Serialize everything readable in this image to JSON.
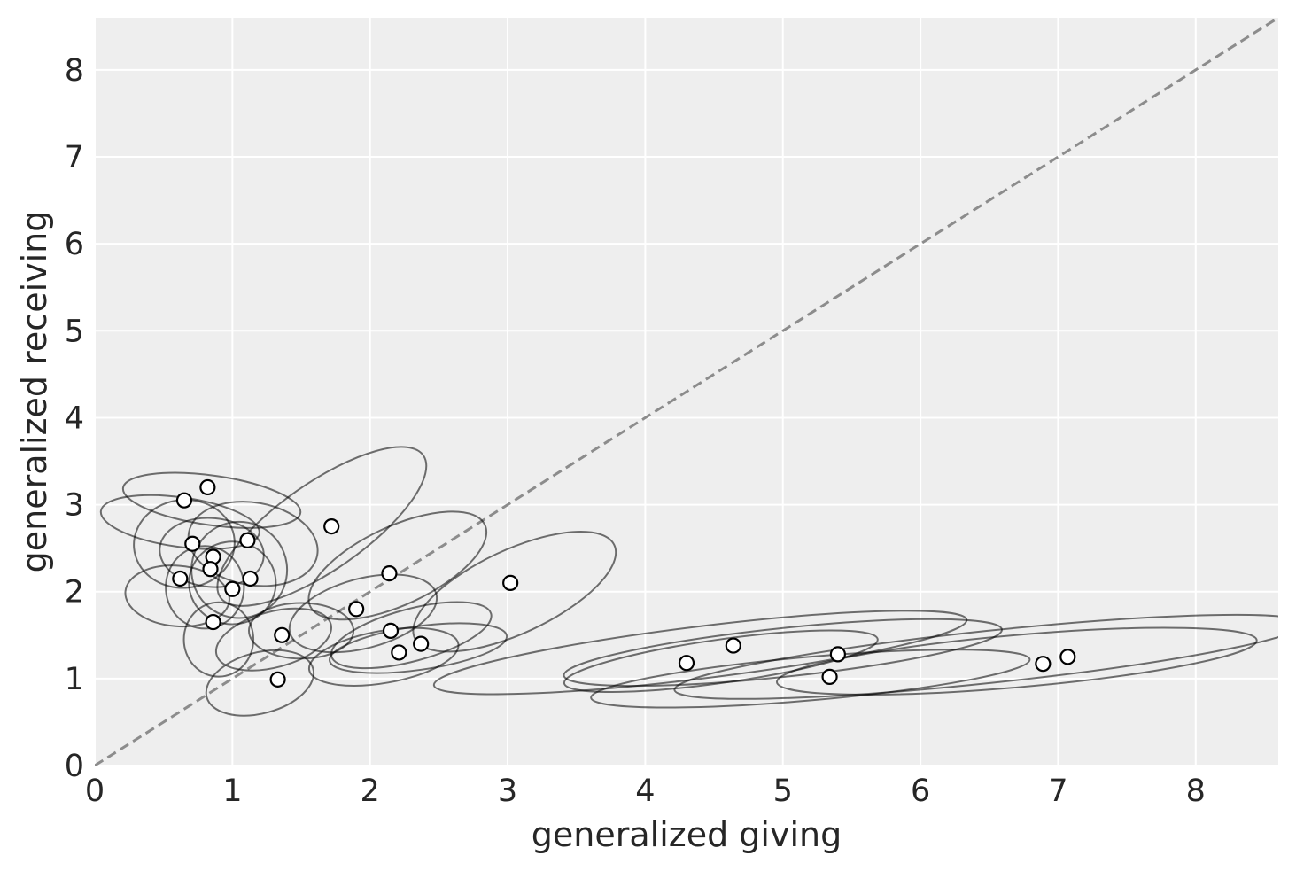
{
  "chart_data": {
    "type": "scatter",
    "title": "",
    "xlabel": "generalized giving",
    "ylabel": "generalized receiving",
    "xlim": [
      0,
      8.6
    ],
    "ylim": [
      0,
      8.6
    ],
    "xticks": [
      "0",
      "1",
      "2",
      "3",
      "4",
      "5",
      "6",
      "7",
      "8"
    ],
    "yticks": [
      "0",
      "1",
      "2",
      "3",
      "4",
      "5",
      "6",
      "7",
      "8"
    ],
    "grid": true,
    "reference_line": {
      "style": "dashed",
      "from": [
        0,
        0
      ],
      "to": [
        8.6,
        8.6
      ],
      "color": "#8c8c8c"
    },
    "points": [
      {
        "x": 0.65,
        "y": 3.05
      },
      {
        "x": 0.82,
        "y": 3.2
      },
      {
        "x": 0.71,
        "y": 2.55
      },
      {
        "x": 0.86,
        "y": 2.4
      },
      {
        "x": 0.84,
        "y": 2.26
      },
      {
        "x": 0.62,
        "y": 2.15
      },
      {
        "x": 1.11,
        "y": 2.59
      },
      {
        "x": 1.13,
        "y": 2.15
      },
      {
        "x": 1.0,
        "y": 2.03
      },
      {
        "x": 0.86,
        "y": 1.65
      },
      {
        "x": 1.36,
        "y": 1.5
      },
      {
        "x": 1.33,
        "y": 0.99
      },
      {
        "x": 1.72,
        "y": 2.75
      },
      {
        "x": 1.9,
        "y": 1.8
      },
      {
        "x": 2.14,
        "y": 2.21
      },
      {
        "x": 2.15,
        "y": 1.55
      },
      {
        "x": 2.21,
        "y": 1.3
      },
      {
        "x": 2.37,
        "y": 1.4
      },
      {
        "x": 3.02,
        "y": 2.1
      },
      {
        "x": 4.3,
        "y": 1.18
      },
      {
        "x": 4.64,
        "y": 1.38
      },
      {
        "x": 5.34,
        "y": 1.02
      },
      {
        "x": 5.4,
        "y": 1.28
      },
      {
        "x": 6.89,
        "y": 1.17
      },
      {
        "x": 7.07,
        "y": 1.25
      }
    ],
    "ellipses": [
      {
        "cx": 0.62,
        "cy": 2.8,
        "rx": 0.18,
        "ry": 0.92,
        "angle": 82
      },
      {
        "cx": 0.85,
        "cy": 3.05,
        "rx": 0.18,
        "ry": 1.03,
        "angle": 82
      },
      {
        "cx": 0.65,
        "cy": 2.55,
        "rx": 0.32,
        "ry": 0.58,
        "angle": 95
      },
      {
        "cx": 0.85,
        "cy": 2.45,
        "rx": 0.25,
        "ry": 0.6,
        "angle": 85
      },
      {
        "cx": 0.8,
        "cy": 2.05,
        "rx": 0.3,
        "ry": 0.45,
        "angle": 90
      },
      {
        "cx": 0.6,
        "cy": 1.95,
        "rx": 0.22,
        "ry": 0.6,
        "angle": 85
      },
      {
        "cx": 1.15,
        "cy": 2.55,
        "rx": 0.3,
        "ry": 0.75,
        "angle": 80
      },
      {
        "cx": 1.05,
        "cy": 2.25,
        "rx": 0.35,
        "ry": 0.55,
        "angle": 90
      },
      {
        "cx": 1.0,
        "cy": 2.1,
        "rx": 0.3,
        "ry": 0.5,
        "angle": 90
      },
      {
        "cx": 0.9,
        "cy": 1.45,
        "rx": 0.27,
        "ry": 0.4,
        "angle": 90
      },
      {
        "cx": 1.3,
        "cy": 1.45,
        "rx": 0.43,
        "ry": 0.32,
        "angle": 15
      },
      {
        "cx": 1.2,
        "cy": 0.95,
        "rx": 0.4,
        "ry": 0.35,
        "angle": 15
      },
      {
        "cx": 1.65,
        "cy": 2.75,
        "rx": 0.9,
        "ry": 0.5,
        "angle": 35
      },
      {
        "cx": 1.5,
        "cy": 1.55,
        "rx": 0.38,
        "ry": 0.32,
        "angle": 0
      },
      {
        "cx": 2.2,
        "cy": 2.3,
        "rx": 0.7,
        "ry": 0.45,
        "angle": 25
      },
      {
        "cx": 1.95,
        "cy": 1.75,
        "rx": 0.55,
        "ry": 0.4,
        "angle": 15
      },
      {
        "cx": 2.3,
        "cy": 1.5,
        "rx": 0.6,
        "ry": 0.3,
        "angle": 15
      },
      {
        "cx": 2.1,
        "cy": 1.25,
        "rx": 0.55,
        "ry": 0.3,
        "angle": 10
      },
      {
        "cx": 2.35,
        "cy": 1.35,
        "rx": 0.65,
        "ry": 0.25,
        "angle": 8
      },
      {
        "cx": 3.05,
        "cy": 2.0,
        "rx": 0.8,
        "ry": 0.48,
        "angle": 25
      },
      {
        "cx": 4.55,
        "cy": 1.2,
        "rx": 1.15,
        "ry": 0.25,
        "angle": 8
      },
      {
        "cx": 4.4,
        "cy": 1.3,
        "rx": 1.95,
        "ry": 0.3,
        "angle": 7
      },
      {
        "cx": 5.0,
        "cy": 1.3,
        "rx": 1.6,
        "ry": 0.28,
        "angle": 6
      },
      {
        "cx": 6.5,
        "cy": 1.25,
        "rx": 2.3,
        "ry": 0.3,
        "angle": 6
      },
      {
        "cx": 5.2,
        "cy": 1.0,
        "rx": 1.6,
        "ry": 0.25,
        "angle": 5
      },
      {
        "cx": 6.7,
        "cy": 1.2,
        "rx": 1.75,
        "ry": 0.3,
        "angle": 5
      }
    ]
  }
}
